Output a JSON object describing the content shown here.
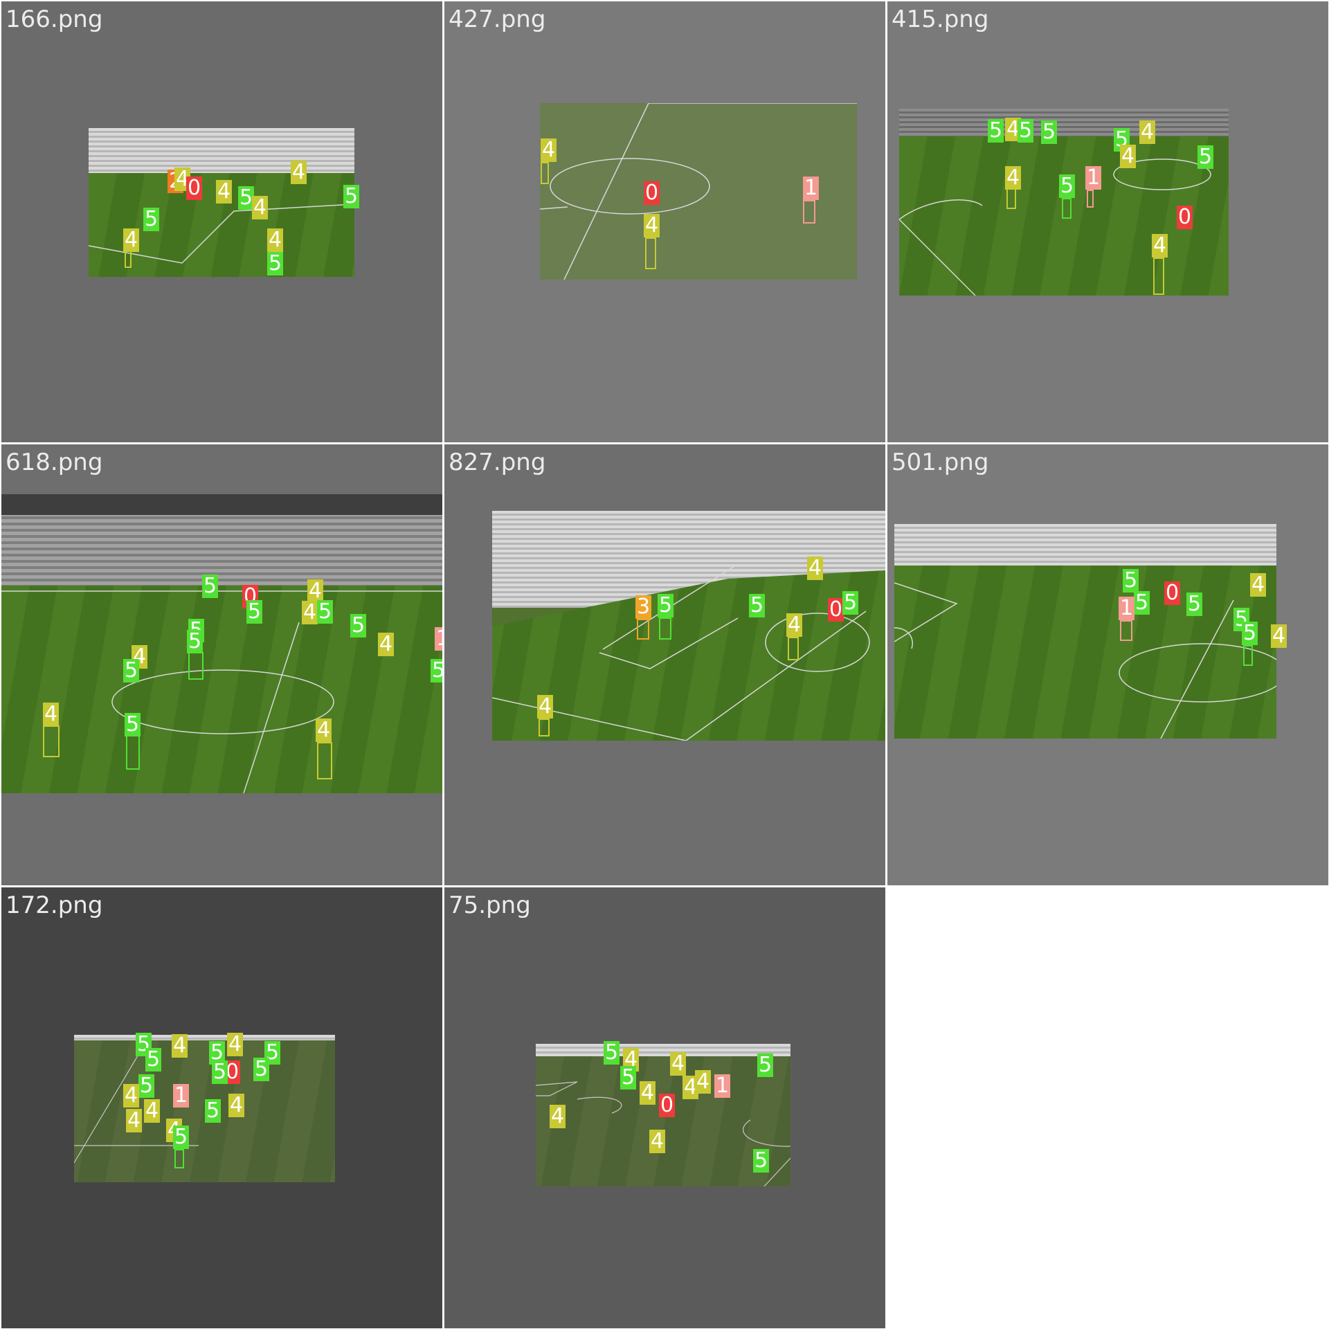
{
  "grid": {
    "tiles": [
      {
        "name": "166.png",
        "background": "#6b6b6b"
      },
      {
        "name": "427.png",
        "background": "#7a7a7a"
      },
      {
        "name": "415.png",
        "background": "#7a7a7a"
      },
      {
        "name": "618.png",
        "background": "#6e6e6e"
      },
      {
        "name": "827.png",
        "background": "#6e6e6e"
      },
      {
        "name": "501.png",
        "background": "#7b7b7b"
      },
      {
        "name": "172.png",
        "background": "#444444"
      },
      {
        "name": "75.png",
        "background": "#5b5b5b"
      }
    ]
  },
  "class_colors": {
    "0": "#ee3b3b",
    "1": "#f39a92",
    "2": "#f07a22",
    "3": "#f0a52a",
    "4": "#c9c934",
    "5": "#52e035"
  },
  "labels": {
    "c0": "0",
    "c1": "1",
    "c2": "2",
    "c3": "3",
    "c4": "4",
    "c5": "5"
  }
}
